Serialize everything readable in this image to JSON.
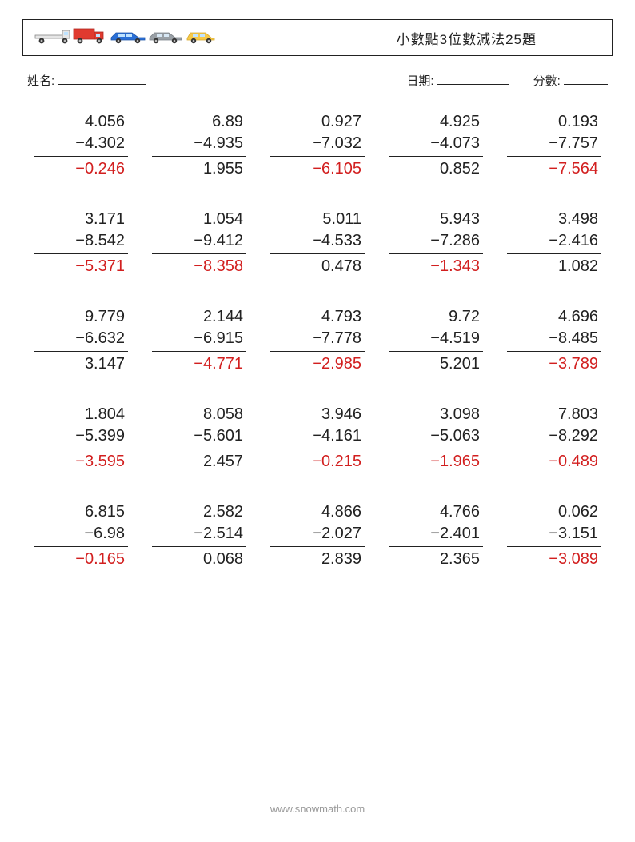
{
  "header": {
    "title": "小數點3位數減法25題"
  },
  "info": {
    "name_label": "姓名:",
    "date_label": "日期:",
    "score_label": "分數:"
  },
  "style": {
    "background_color": "#ffffff",
    "text_color": "#222222",
    "answer_negative_color": "#d21f1f",
    "answer_positive_color": "#222222",
    "border_color": "#222222",
    "footer_color": "#9a9a9a",
    "font_size_problem": 20,
    "font_size_title": 17,
    "font_size_info": 15,
    "font_size_footer": 13,
    "grid_columns": 5,
    "grid_rows": 5
  },
  "vehicles": [
    {
      "name": "flatbed-truck",
      "body": "#e6e6e6",
      "accent": "#c5c5c5"
    },
    {
      "name": "box-truck",
      "body": "#e03a2f",
      "accent": "#b02820"
    },
    {
      "name": "sedan-blue",
      "body": "#2a6fd6",
      "accent": "#1f55a8"
    },
    {
      "name": "sedan-gray",
      "body": "#9aa0a6",
      "accent": "#7a8086"
    },
    {
      "name": "hatchback-yellow",
      "body": "#f7c948",
      "accent": "#d6a92e"
    }
  ],
  "problems": [
    {
      "a": "4.056",
      "b": "−4.302",
      "ans": "−0.246",
      "neg": true
    },
    {
      "a": "6.89",
      "b": "−4.935",
      "ans": "1.955",
      "neg": false
    },
    {
      "a": "0.927",
      "b": "−7.032",
      "ans": "−6.105",
      "neg": true
    },
    {
      "a": "4.925",
      "b": "−4.073",
      "ans": "0.852",
      "neg": false
    },
    {
      "a": "0.193",
      "b": "−7.757",
      "ans": "−7.564",
      "neg": true
    },
    {
      "a": "3.171",
      "b": "−8.542",
      "ans": "−5.371",
      "neg": true
    },
    {
      "a": "1.054",
      "b": "−9.412",
      "ans": "−8.358",
      "neg": true
    },
    {
      "a": "5.011",
      "b": "−4.533",
      "ans": "0.478",
      "neg": false
    },
    {
      "a": "5.943",
      "b": "−7.286",
      "ans": "−1.343",
      "neg": true
    },
    {
      "a": "3.498",
      "b": "−2.416",
      "ans": "1.082",
      "neg": false
    },
    {
      "a": "9.779",
      "b": "−6.632",
      "ans": "3.147",
      "neg": false
    },
    {
      "a": "2.144",
      "b": "−6.915",
      "ans": "−4.771",
      "neg": true
    },
    {
      "a": "4.793",
      "b": "−7.778",
      "ans": "−2.985",
      "neg": true
    },
    {
      "a": "9.72",
      "b": "−4.519",
      "ans": "5.201",
      "neg": false
    },
    {
      "a": "4.696",
      "b": "−8.485",
      "ans": "−3.789",
      "neg": true
    },
    {
      "a": "1.804",
      "b": "−5.399",
      "ans": "−3.595",
      "neg": true
    },
    {
      "a": "8.058",
      "b": "−5.601",
      "ans": "2.457",
      "neg": false
    },
    {
      "a": "3.946",
      "b": "−4.161",
      "ans": "−0.215",
      "neg": true
    },
    {
      "a": "3.098",
      "b": "−5.063",
      "ans": "−1.965",
      "neg": true
    },
    {
      "a": "7.803",
      "b": "−8.292",
      "ans": "−0.489",
      "neg": true
    },
    {
      "a": "6.815",
      "b": "−6.98",
      "ans": "−0.165",
      "neg": true
    },
    {
      "a": "2.582",
      "b": "−2.514",
      "ans": "0.068",
      "neg": false
    },
    {
      "a": "4.866",
      "b": "−2.027",
      "ans": "2.839",
      "neg": false
    },
    {
      "a": "4.766",
      "b": "−2.401",
      "ans": "2.365",
      "neg": false
    },
    {
      "a": "0.062",
      "b": "−3.151",
      "ans": "−3.089",
      "neg": true
    }
  ],
  "footer": {
    "text": "www.snowmath.com"
  }
}
